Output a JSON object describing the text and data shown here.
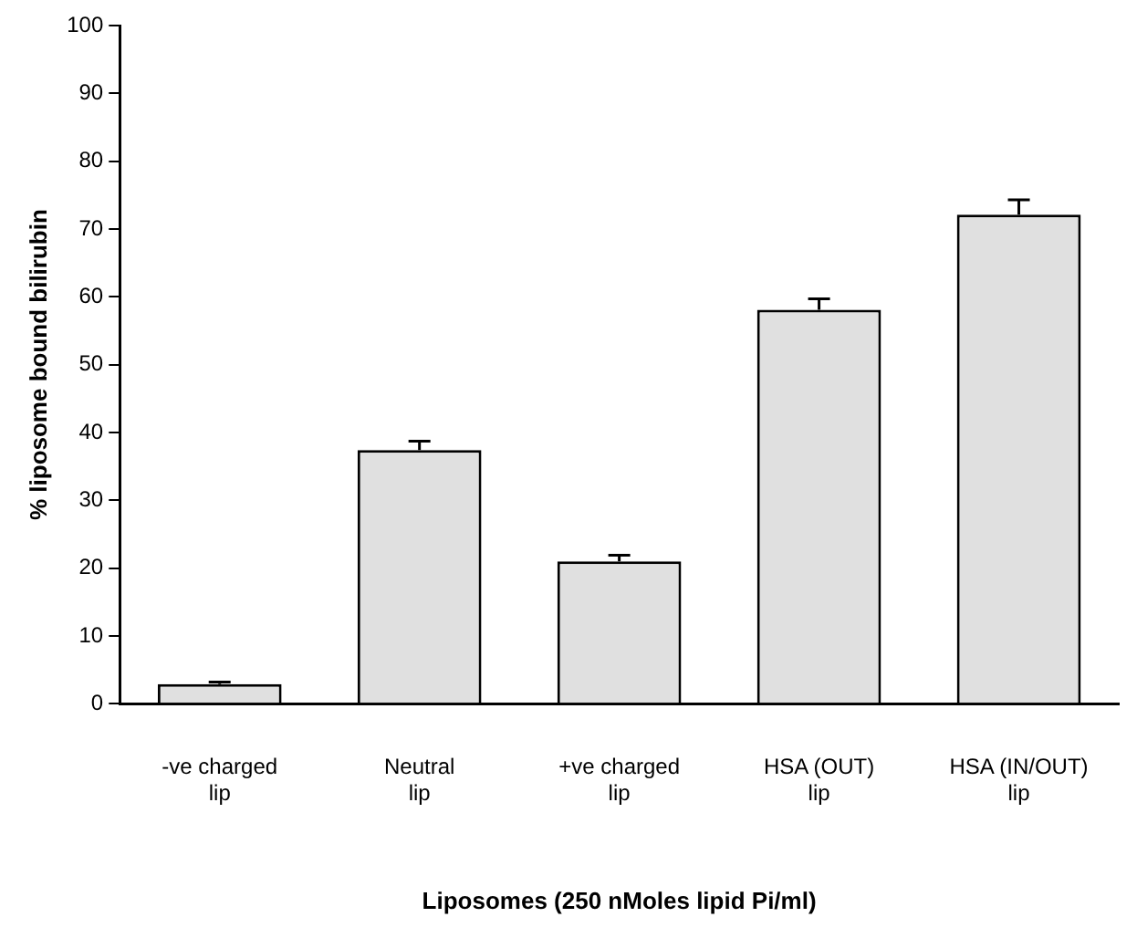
{
  "chart_data": {
    "type": "bar",
    "xlabel": "Liposomes (250 nMoles lipid Pi/ml)",
    "ylabel": "% liposome bound bilirubin",
    "categories": [
      "-ve charged\nlip",
      "Neutral\nlip",
      "+ve charged\nlip",
      "HSA (OUT)\nlip",
      "HSA (IN/OUT)\nlip"
    ],
    "values": [
      2.9,
      37.4,
      21.0,
      58.1,
      72.1
    ],
    "errors": [
      [
        2.9,
        3.2
      ],
      [
        37.4,
        38.7
      ],
      [
        21.0,
        21.9
      ],
      [
        58.1,
        59.7
      ],
      [
        72.1,
        74.3
      ]
    ],
    "color": "#e0e0e0",
    "ylim": [
      0,
      100
    ],
    "yticks": [
      0,
      10,
      20,
      30,
      40,
      50,
      60,
      70,
      80,
      90,
      100
    ],
    "grid": false,
    "legend": false
  }
}
